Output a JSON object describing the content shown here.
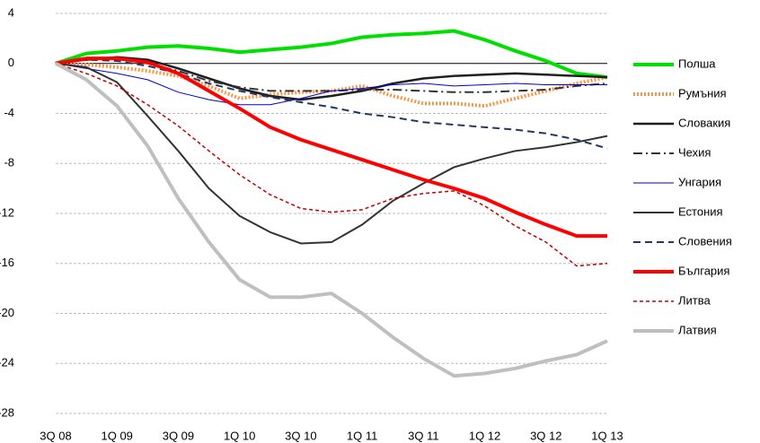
{
  "chart_data": {
    "type": "line",
    "categories": [
      "3Q 08",
      null,
      "1Q 09",
      null,
      "3Q 09",
      null,
      "1Q 10",
      null,
      "3Q 10",
      null,
      "1Q 11",
      null,
      "3Q 11",
      null,
      "1Q 12",
      null,
      "3Q 12",
      null,
      "1Q 13"
    ],
    "ylim": [
      -28,
      4
    ],
    "yticks": [
      -28,
      -24,
      -20,
      -16,
      -12,
      -8,
      -4,
      0,
      4
    ],
    "grid": true,
    "series": [
      {
        "name": "Полша",
        "color": "#00e000",
        "width": 4,
        "dash": "solid",
        "values": [
          0,
          0.8,
          1.0,
          1.3,
          1.4,
          1.2,
          0.9,
          1.1,
          1.3,
          1.6,
          2.1,
          2.3,
          2.4,
          2.6,
          1.9,
          1.0,
          0.2,
          -0.8,
          -1.1
        ]
      },
      {
        "name": "Румъния",
        "color": "#f79646",
        "width": 4,
        "dash": "dot",
        "values": [
          0,
          -0.1,
          -0.3,
          -0.6,
          -1.0,
          -1.8,
          -2.8,
          -2.5,
          -2.3,
          -2.2,
          -1.8,
          -2.6,
          -3.2,
          -3.2,
          -3.4,
          -2.8,
          -2.2,
          -1.6,
          -1.1
        ]
      },
      {
        "name": "Словакия",
        "color": "#1f1f1f",
        "width": 2.5,
        "dash": "solid",
        "values": [
          0,
          0.3,
          0.5,
          0.3,
          -0.4,
          -1.2,
          -2.0,
          -2.6,
          -2.9,
          -2.6,
          -2.2,
          -1.6,
          -1.2,
          -1.0,
          -0.9,
          -0.8,
          -0.9,
          -1.0,
          -1.1
        ]
      },
      {
        "name": "Чехия",
        "color": "#333333",
        "width": 2,
        "dash": "dashdot",
        "values": [
          0,
          0.4,
          0.4,
          0.0,
          -0.6,
          -1.4,
          -1.9,
          -2.2,
          -2.2,
          -2.2,
          -2.1,
          -2.1,
          -2.2,
          -2.3,
          -2.3,
          -2.2,
          -2.1,
          -1.8,
          -1.6
        ]
      },
      {
        "name": "Унгария",
        "color": "#0000cc",
        "width": 1,
        "dash": "solid",
        "values": [
          0,
          -0.4,
          -0.8,
          -1.3,
          -2.3,
          -2.9,
          -3.3,
          -3.3,
          -2.8,
          -2.2,
          -2.0,
          -1.7,
          -1.6,
          -1.8,
          -1.7,
          -1.6,
          -1.7,
          -1.7,
          -1.7
        ]
      },
      {
        "name": "Естония",
        "color": "#333333",
        "width": 2,
        "dash": "solid",
        "values": [
          0,
          -0.3,
          -1.5,
          -4.2,
          -7.0,
          -10.0,
          -12.2,
          -13.5,
          -14.4,
          -14.3,
          -12.9,
          -11.0,
          -9.6,
          -8.3,
          -7.6,
          -7.0,
          -6.7,
          -6.3,
          -5.8
        ]
      },
      {
        "name": "Словения",
        "color": "#1f3864",
        "width": 2,
        "dash": "dash",
        "values": [
          0,
          0.3,
          0.2,
          -0.2,
          -0.8,
          -1.6,
          -2.2,
          -2.7,
          -3.1,
          -3.5,
          -4.0,
          -4.3,
          -4.7,
          -4.9,
          -5.1,
          -5.3,
          -5.6,
          -6.1,
          -6.8
        ]
      },
      {
        "name": "България",
        "color": "#ff0000",
        "width": 4,
        "dash": "solid",
        "values": [
          0,
          0.4,
          0.4,
          0.1,
          -0.8,
          -2.2,
          -3.6,
          -5.1,
          -6.1,
          -6.9,
          -7.7,
          -8.5,
          -9.3,
          -10.0,
          -10.8,
          -11.9,
          -12.9,
          -13.8,
          -13.8
        ]
      },
      {
        "name": "Литва",
        "color": "#c00000",
        "width": 1.5,
        "dash": "shortdash",
        "values": [
          0,
          -0.8,
          -1.8,
          -3.3,
          -5.0,
          -7.0,
          -8.9,
          -10.5,
          -11.6,
          -11.9,
          -11.7,
          -10.8,
          -10.4,
          -10.2,
          -11.4,
          -13.0,
          -14.3,
          -16.2,
          -16.0
        ]
      },
      {
        "name": "Латвия",
        "color": "#bfbfbf",
        "width": 4,
        "dash": "solid",
        "values": [
          0,
          -1.3,
          -3.4,
          -6.6,
          -10.8,
          -14.3,
          -17.3,
          -18.7,
          -18.7,
          -18.4,
          -20.0,
          -21.9,
          -23.6,
          -25.0,
          -24.8,
          -24.4,
          -23.8,
          -23.3,
          -22.2
        ]
      }
    ]
  }
}
